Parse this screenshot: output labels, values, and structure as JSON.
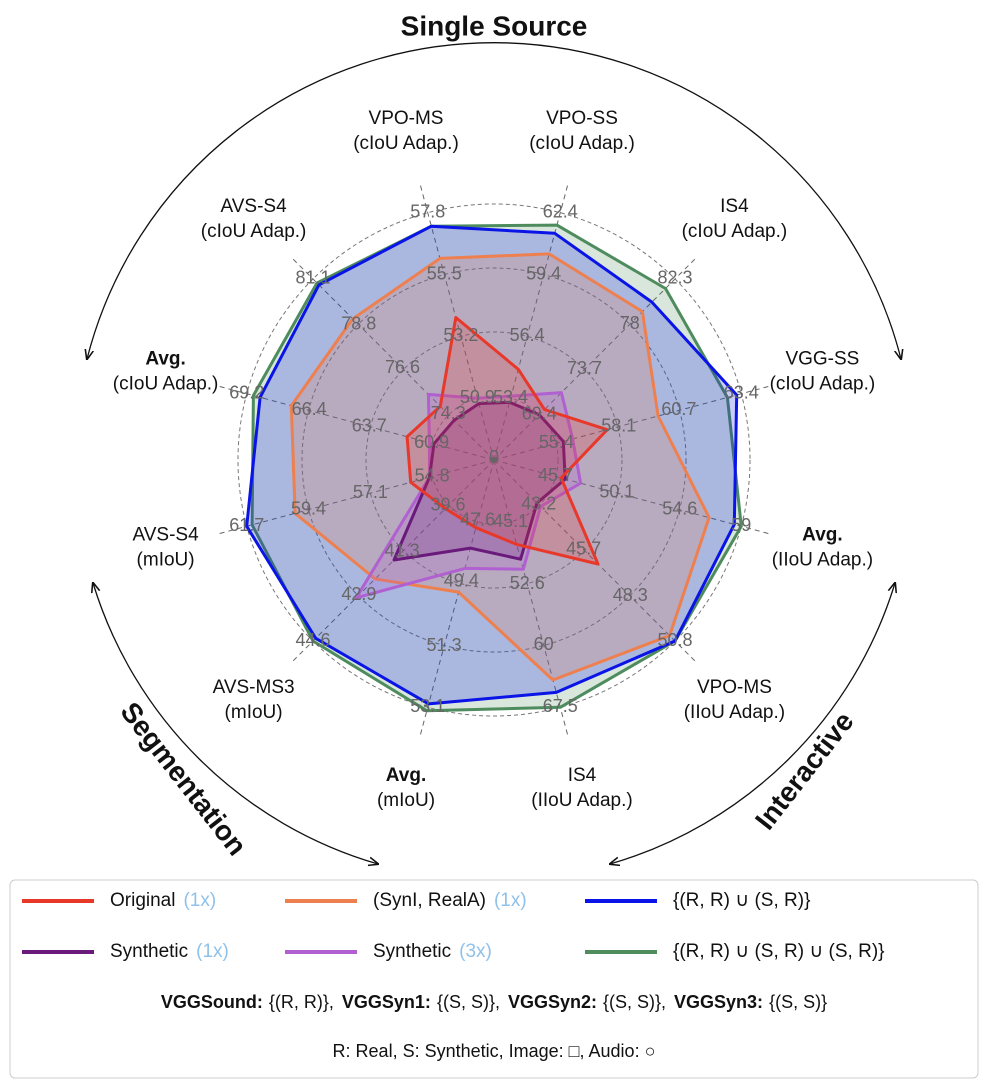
{
  "chart_data": {
    "type": "radar",
    "groups": [
      {
        "label": "Single Source"
      },
      {
        "label": "Segmentation"
      },
      {
        "label": "Interactive"
      }
    ],
    "origin_label": "0",
    "axes": [
      {
        "label": [
          "VPO-MS",
          "(cIoU Adap.)"
        ],
        "rlim": [
          48.6,
          57.8
        ],
        "rticks": [
          50.9,
          53.2,
          55.5,
          57.8
        ]
      },
      {
        "label": [
          "VPO-SS",
          "(cIoU Adap.)"
        ],
        "rlim": [
          50.4,
          62.4
        ],
        "rticks": [
          53.4,
          56.4,
          59.4,
          62.4
        ]
      },
      {
        "label": [
          "IS4",
          "(cIoU Adap.)"
        ],
        "rlim": [
          65.1,
          82.3
        ],
        "rticks": [
          69.4,
          73.7,
          78.0,
          82.3
        ]
      },
      {
        "label": [
          "VGG-SS",
          "(cIoU Adap.)"
        ],
        "rlim": [
          52.7,
          63.4
        ],
        "rticks": [
          55.4,
          58.1,
          60.7,
          63.4
        ]
      },
      {
        "label": [
          "Avg.",
          "(IIoU Adap.)"
        ],
        "bold": true,
        "rlim": [
          41.3,
          59.0
        ],
        "rticks": [
          45.7,
          50.1,
          54.6,
          59.0
        ]
      },
      {
        "label": [
          "VPO-MS",
          "(IIoU Adap.)"
        ],
        "rlim": [
          40.7,
          50.8
        ],
        "rticks": [
          43.2,
          45.7,
          48.3,
          50.8
        ]
      },
      {
        "label": [
          "IS4",
          "(IIoU Adap.)"
        ],
        "rlim": [
          37.6,
          67.5
        ],
        "rticks": [
          45.1,
          52.6,
          60.0,
          67.5
        ]
      },
      {
        "label": [
          "Avg.",
          "(mIoU)"
        ],
        "bold": true,
        "rlim": [
          45.8,
          53.1
        ],
        "rticks": [
          47.6,
          49.4,
          51.3,
          53.1
        ]
      },
      {
        "label": [
          "AVS-MS3",
          "(mIoU)"
        ],
        "rlim": [
          37.9,
          44.6
        ],
        "rticks": [
          39.6,
          41.3,
          42.9,
          44.6
        ]
      },
      {
        "label": [
          "AVS-S4",
          "(mIoU)"
        ],
        "rlim": [
          52.5,
          61.7
        ],
        "rticks": [
          54.8,
          57.1,
          59.4,
          61.7
        ]
      },
      {
        "label": [
          "Avg.",
          "(cIoU Adap.)"
        ],
        "bold": true,
        "rlim": [
          58.1,
          69.2
        ],
        "rticks": [
          60.9,
          63.7,
          66.4,
          69.2
        ]
      },
      {
        "label": [
          "AVS-S4",
          "(cIoU Adap.)"
        ],
        "rlim": [
          72.0,
          81.1
        ],
        "rticks": [
          74.3,
          76.6,
          78.8,
          81.1
        ]
      }
    ],
    "series": [
      {
        "name": "Original",
        "multiplier": "(1x)",
        "color": "#e8382a",
        "values": [
          53.9,
          54.8,
          69.9,
          57.6,
          46.1,
          46.5,
          47.8,
          47.8,
          39.7,
          55.6,
          62.0,
          74.7
        ]
      },
      {
        "name": "(SynI, RealA)",
        "multiplier": "(1x)",
        "color": "#ee8050",
        "values": [
          56.1,
          60.4,
          79.2,
          59.8,
          56.7,
          50.5,
          64.2,
          49.7,
          42.3,
          59.9,
          67.2,
          79.1
        ]
      },
      {
        "name": "{(R, R) ∪ (S, R)}",
        "color": "#0a14e6",
        "values": [
          57.3,
          61.4,
          80.1,
          63.2,
          58.5,
          50.8,
          65.7,
          53.0,
          44.5,
          61.7,
          68.6,
          80.8
        ]
      },
      {
        "name": "Synthetic",
        "multiplier": "(1x)",
        "color": "#6a1a7a",
        "values": [
          50.7,
          53.2,
          69.4,
          55.7,
          46.4,
          43.1,
          49.6,
          48.4,
          41.6,
          54.9,
          60.8,
          74.0
        ]
      },
      {
        "name": "Synthetic",
        "multiplier": "(3x)",
        "color": "#b060d0",
        "values": [
          50.9,
          53.5,
          71.5,
          56.1,
          47.5,
          43.3,
          50.8,
          49.0,
          43.0,
          54.9,
          61.0,
          75.3
        ]
      },
      {
        "name": "{(R, R) ∪ (S, R) ∪ (S, R)}",
        "color": "#4e8c5e",
        "values": [
          57.3,
          61.8,
          81.4,
          62.8,
          59.0,
          50.8,
          67.5,
          53.2,
          44.6,
          61.5,
          68.9,
          80.9
        ]
      }
    ],
    "datasets": [
      {
        "name": "VGGSound:",
        "set": "{(R, R)},"
      },
      {
        "name": "VGGSyn1:",
        "set": "{(S, S)},"
      },
      {
        "name": "VGGSyn2:",
        "set": "{(S, S)},"
      },
      {
        "name": "VGGSyn3:",
        "set": "{(S, S)}"
      }
    ],
    "note": "R: Real,   S: Synthetic,   Image: □,   Audio: ○"
  }
}
